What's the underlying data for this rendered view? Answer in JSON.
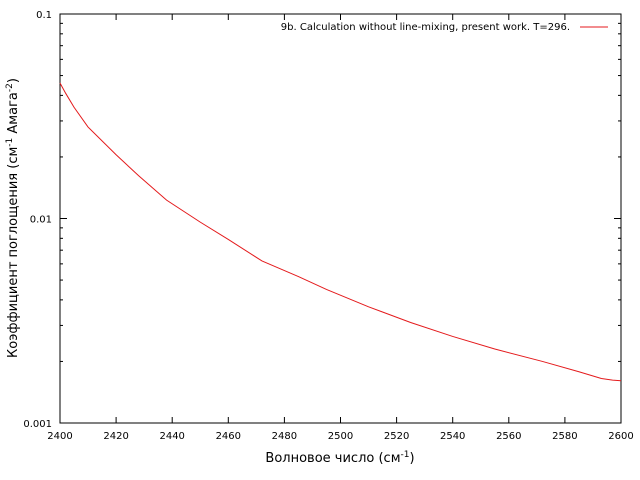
{
  "chart_data": {
    "type": "line",
    "title": "",
    "xlabel": "Волновое число (см",
    "xlabel_sup": "-1",
    "xlabel_end": ")",
    "ylabel": "Коэффициент поглощения (см",
    "ylabel_sup1": "-1",
    "ylabel_mid": " Амага",
    "ylabel_sup2": "-2",
    "ylabel_end": ")",
    "xlim": [
      2400,
      2600
    ],
    "ylim": [
      0.001,
      0.1
    ],
    "y_scale": "log",
    "grid": false,
    "legend_position": "top-right",
    "x_ticks": [
      2400,
      2420,
      2440,
      2460,
      2480,
      2500,
      2520,
      2540,
      2560,
      2580,
      2600
    ],
    "x_tick_labels": [
      "2400",
      "2420",
      "2440",
      "2460",
      "2480",
      "2500",
      "2520",
      "2540",
      "2560",
      "2580",
      "2600"
    ],
    "y_ticks": [
      0.001,
      0.01,
      0.1
    ],
    "y_tick_labels": [
      "0.001",
      "0.01",
      "0.1"
    ],
    "series": [
      {
        "name": "9b. Calculation without line-mixing, present work. T=296.",
        "color": "#e41a1c",
        "x": [
          2400,
          2402,
          2405,
          2410,
          2420,
          2428,
          2438,
          2450,
          2460,
          2472,
          2485,
          2495,
          2510,
          2525,
          2540,
          2555,
          2572,
          2585,
          2593,
          2597,
          2600
        ],
        "y": [
          0.046,
          0.041,
          0.035,
          0.028,
          0.0205,
          0.0162,
          0.0123,
          0.0096,
          0.0079,
          0.0062,
          0.0052,
          0.0045,
          0.0037,
          0.0031,
          0.00265,
          0.0023,
          0.002,
          0.00178,
          0.00165,
          0.00162,
          0.00161
        ]
      }
    ]
  }
}
